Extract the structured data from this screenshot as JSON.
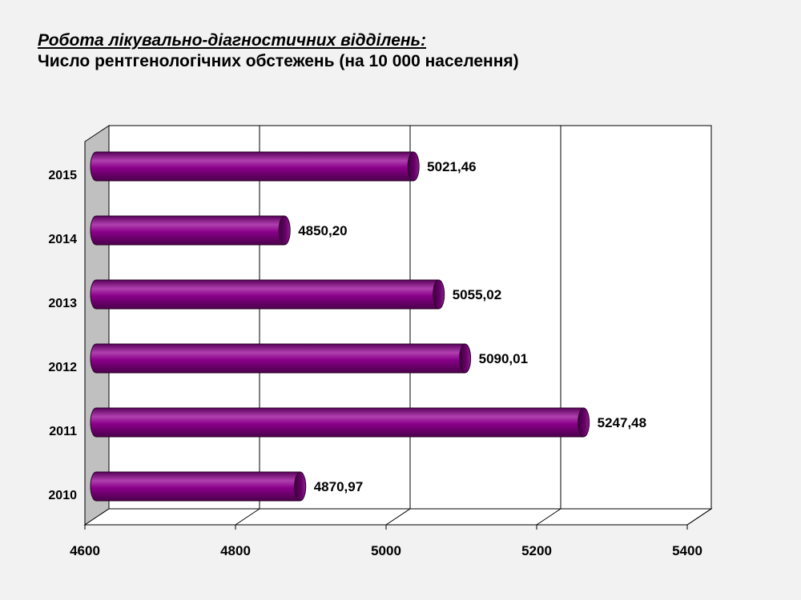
{
  "header": {
    "title": "Робота лікувально-діагностичних відділень:",
    "subtitle": "Число рентгенологічних обстежень (на 10 000 населення)"
  },
  "chart_data": {
    "type": "bar",
    "orientation": "horizontal",
    "categories": [
      "2015",
      "2014",
      "2013",
      "2012",
      "2011",
      "2010"
    ],
    "values": [
      5021.46,
      4850.2,
      5055.02,
      5090.01,
      5247.48,
      4870.97
    ],
    "value_labels": [
      "5021,46",
      "4850,20",
      "5055,02",
      "5090,01",
      "5247,48",
      "4870,97"
    ],
    "xlim": [
      4600,
      5400
    ],
    "x_ticks": [
      "4600",
      "4800",
      "5000",
      "5200",
      "5400"
    ],
    "grid": true,
    "legend": "none",
    "colors": {
      "bar": "#800080",
      "bar_dark": "#4a004a",
      "bar_light": "#b040b0",
      "wall": "#c0c0c0",
      "plot_bg": "#ffffff"
    }
  }
}
